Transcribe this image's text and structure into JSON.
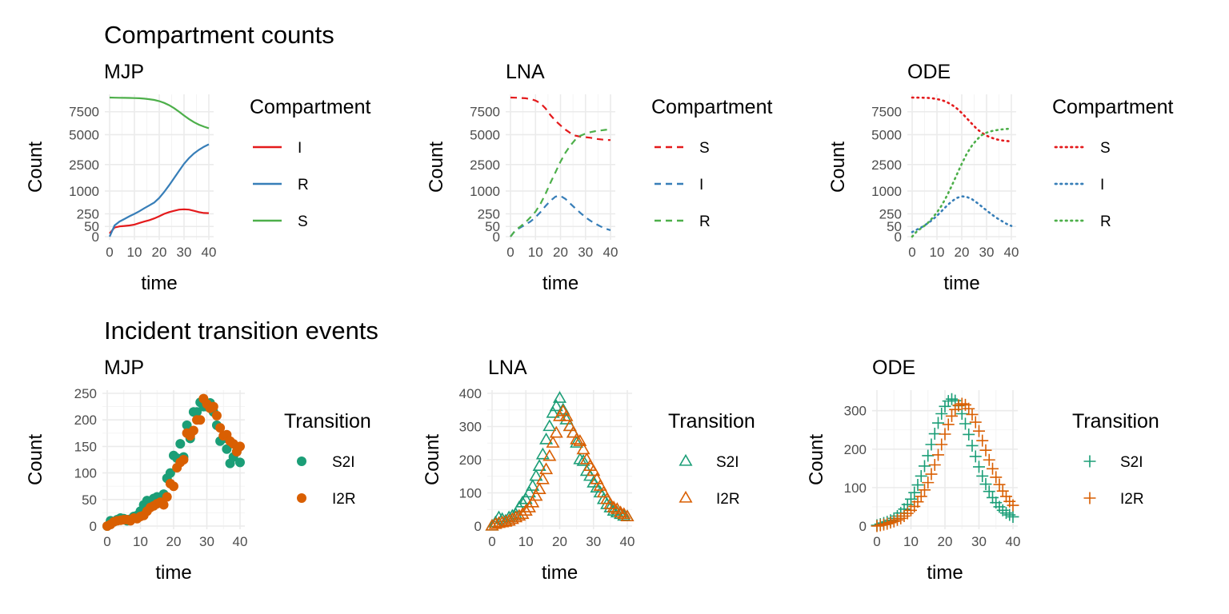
{
  "section_titles": {
    "top": "Compartment counts",
    "bottom": "Incident transition events"
  },
  "colors": {
    "red": "#E41A1C",
    "blue": "#377EB8",
    "green": "#4DAF4A",
    "teal": "#1B9E77",
    "orange": "#D95F02"
  },
  "chart_data": [
    {
      "type": "line",
      "title": "MJP",
      "xlabel": "time",
      "ylabel": "Count",
      "xlim": [
        0,
        40
      ],
      "y_scale": "sqrt",
      "ylim": [
        0,
        9300
      ],
      "x_ticks": [
        0,
        10,
        20,
        30,
        40
      ],
      "y_ticks": [
        0,
        50,
        250,
        1000,
        2500,
        5000,
        7500
      ],
      "linestyle": "solid",
      "legend_title": "Compartment",
      "legend_position": "right",
      "series": [
        {
          "name": "I",
          "color": "#E41A1C",
          "x": [
            0,
            2,
            4,
            6,
            8,
            10,
            12,
            14,
            16,
            18,
            20,
            22,
            24,
            26,
            28,
            30,
            32,
            34,
            36,
            38,
            40
          ],
          "y": [
            5,
            40,
            50,
            55,
            60,
            70,
            90,
            110,
            130,
            160,
            200,
            250,
            290,
            320,
            350,
            360,
            350,
            320,
            290,
            270,
            265
          ]
        },
        {
          "name": "R",
          "color": "#377EB8",
          "x": [
            0,
            2,
            4,
            6,
            8,
            10,
            12,
            14,
            16,
            18,
            20,
            22,
            24,
            26,
            28,
            30,
            32,
            34,
            36,
            38,
            40
          ],
          "y": [
            0,
            60,
            110,
            150,
            200,
            250,
            310,
            390,
            470,
            560,
            720,
            960,
            1270,
            1650,
            2080,
            2550,
            2960,
            3320,
            3620,
            3880,
            4100
          ]
        },
        {
          "name": "S",
          "color": "#4DAF4A",
          "x": [
            0,
            2,
            4,
            6,
            8,
            10,
            12,
            14,
            16,
            18,
            20,
            22,
            24,
            26,
            28,
            30,
            32,
            34,
            36,
            38,
            40
          ],
          "y": [
            9300,
            9280,
            9270,
            9260,
            9250,
            9230,
            9200,
            9150,
            9080,
            8980,
            8820,
            8600,
            8300,
            7930,
            7500,
            7050,
            6650,
            6300,
            6020,
            5820,
            5650
          ]
        }
      ]
    },
    {
      "type": "line",
      "title": "LNA",
      "xlabel": "time",
      "ylabel": "Count",
      "xlim": [
        0,
        40
      ],
      "y_scale": "sqrt",
      "ylim": [
        0,
        9300
      ],
      "x_ticks": [
        0,
        10,
        20,
        30,
        40
      ],
      "y_ticks": [
        0,
        50,
        250,
        1000,
        2500,
        5000,
        7500
      ],
      "linestyle": "dashed",
      "legend_title": "Compartment",
      "legend_position": "right",
      "series": [
        {
          "name": "S",
          "color": "#E41A1C",
          "x": [
            0,
            2,
            4,
            6,
            8,
            10,
            12,
            14,
            16,
            18,
            20,
            22,
            24,
            26,
            28,
            30,
            32,
            34,
            36,
            38,
            40
          ],
          "y": [
            9300,
            9280,
            9250,
            9200,
            9100,
            8900,
            8550,
            7900,
            7100,
            6450,
            5950,
            5500,
            5150,
            4900,
            4800,
            4750,
            4700,
            4600,
            4550,
            4500,
            4480
          ]
        },
        {
          "name": "I",
          "color": "#377EB8",
          "x": [
            0,
            2,
            4,
            6,
            8,
            10,
            12,
            14,
            16,
            18,
            20,
            22,
            24,
            26,
            28,
            30,
            32,
            34,
            36,
            38,
            40
          ],
          "y": [
            0,
            20,
            40,
            70,
            110,
            180,
            290,
            450,
            620,
            770,
            800,
            680,
            520,
            380,
            270,
            180,
            120,
            80,
            50,
            30,
            20
          ]
        },
        {
          "name": "R",
          "color": "#4DAF4A",
          "x": [
            0,
            2,
            4,
            6,
            8,
            10,
            12,
            14,
            16,
            18,
            20,
            22,
            24,
            26,
            28,
            30,
            32,
            34,
            36,
            38,
            40
          ],
          "y": [
            0,
            20,
            50,
            100,
            180,
            300,
            520,
            880,
            1400,
            2000,
            2700,
            3400,
            4000,
            4550,
            4900,
            5100,
            5250,
            5350,
            5420,
            5480,
            5550
          ]
        }
      ]
    },
    {
      "type": "line",
      "title": "ODE",
      "xlabel": "time",
      "ylabel": "Count",
      "xlim": [
        0,
        40
      ],
      "y_scale": "sqrt",
      "ylim": [
        0,
        9300
      ],
      "x_ticks": [
        0,
        10,
        20,
        30,
        40
      ],
      "y_ticks": [
        0,
        50,
        250,
        1000,
        2500,
        5000,
        7500
      ],
      "linestyle": "dotted",
      "legend_title": "Compartment",
      "legend_position": "right",
      "series": [
        {
          "name": "S",
          "color": "#E41A1C",
          "x": [
            0,
            2,
            4,
            6,
            8,
            10,
            12,
            14,
            16,
            18,
            20,
            22,
            24,
            26,
            28,
            30,
            32,
            34,
            36,
            38,
            40
          ],
          "y": [
            9300,
            9290,
            9280,
            9260,
            9200,
            9100,
            8950,
            8700,
            8350,
            7900,
            7350,
            6750,
            6150,
            5600,
            5200,
            4900,
            4700,
            4550,
            4450,
            4400,
            4350
          ]
        },
        {
          "name": "I",
          "color": "#377EB8",
          "x": [
            0,
            2,
            4,
            6,
            8,
            10,
            12,
            14,
            16,
            18,
            20,
            22,
            24,
            26,
            28,
            30,
            32,
            34,
            36,
            38,
            40
          ],
          "y": [
            10,
            25,
            45,
            80,
            130,
            210,
            320,
            460,
            600,
            720,
            780,
            760,
            680,
            560,
            440,
            330,
            240,
            170,
            120,
            80,
            55
          ]
        },
        {
          "name": "R",
          "color": "#4DAF4A",
          "x": [
            0,
            2,
            4,
            6,
            8,
            10,
            12,
            14,
            16,
            18,
            20,
            22,
            24,
            26,
            28,
            30,
            32,
            34,
            36,
            38,
            40
          ],
          "y": [
            0,
            15,
            40,
            80,
            160,
            280,
            480,
            800,
            1250,
            1850,
            2550,
            3300,
            3950,
            4500,
            4950,
            5200,
            5350,
            5450,
            5520,
            5570,
            5600
          ]
        }
      ]
    },
    {
      "type": "scatter",
      "title": "MJP",
      "xlabel": "time",
      "ylabel": "Count",
      "xlim": [
        0,
        40
      ],
      "ylim": [
        0,
        250
      ],
      "x_ticks": [
        0,
        10,
        20,
        30,
        40
      ],
      "y_ticks": [
        0,
        50,
        100,
        150,
        200,
        250
      ],
      "marker": "circle",
      "legend_title": "Transition",
      "legend_position": "right",
      "series": [
        {
          "name": "S2I",
          "color": "#1B9E77",
          "x": [
            0,
            1,
            2,
            3,
            4,
            5,
            6,
            7,
            8,
            9,
            10,
            11,
            12,
            13,
            14,
            15,
            16,
            17,
            18,
            19,
            20,
            21,
            22,
            23,
            24,
            25,
            26,
            27,
            28,
            29,
            30,
            31,
            32,
            33,
            34,
            35,
            36,
            37,
            38,
            39,
            40
          ],
          "y": [
            0,
            10,
            8,
            12,
            15,
            14,
            10,
            13,
            18,
            20,
            28,
            40,
            48,
            45,
            52,
            55,
            50,
            60,
            90,
            100,
            133,
            128,
            155,
            130,
            190,
            165,
            215,
            215,
            233,
            225,
            225,
            232,
            215,
            190,
            160,
            165,
            145,
            118,
            130,
            140,
            120
          ]
        },
        {
          "name": "I2R",
          "color": "#D95F02",
          "x": [
            0,
            1,
            2,
            3,
            4,
            5,
            6,
            7,
            8,
            9,
            10,
            11,
            12,
            13,
            14,
            15,
            16,
            17,
            18,
            19,
            20,
            21,
            22,
            23,
            24,
            25,
            26,
            27,
            28,
            29,
            30,
            31,
            32,
            33,
            34,
            35,
            36,
            37,
            38,
            39,
            40
          ],
          "y": [
            0,
            3,
            8,
            10,
            11,
            12,
            12,
            10,
            15,
            14,
            18,
            20,
            28,
            35,
            38,
            42,
            45,
            40,
            55,
            80,
            75,
            110,
            120,
            125,
            175,
            170,
            180,
            200,
            200,
            240,
            230,
            222,
            225,
            208,
            185,
            170,
            172,
            160,
            155,
            140,
            150
          ]
        }
      ]
    },
    {
      "type": "scatter",
      "title": "LNA",
      "xlabel": "time",
      "ylabel": "Count",
      "xlim": [
        0,
        40
      ],
      "ylim": [
        0,
        400
      ],
      "x_ticks": [
        0,
        10,
        20,
        30,
        40
      ],
      "y_ticks": [
        0,
        100,
        200,
        300,
        400
      ],
      "marker": "triangle",
      "legend_title": "Transition",
      "legend_position": "right",
      "series": [
        {
          "name": "S2I",
          "color": "#1B9E77",
          "x": [
            0,
            1,
            2,
            3,
            4,
            5,
            6,
            7,
            8,
            9,
            10,
            11,
            12,
            13,
            14,
            15,
            16,
            17,
            18,
            19,
            20,
            21,
            22,
            23,
            24,
            25,
            26,
            27,
            28,
            29,
            30,
            31,
            32,
            33,
            34,
            35,
            36,
            37,
            38,
            39,
            40
          ],
          "y": [
            0,
            10,
            25,
            20,
            15,
            25,
            30,
            35,
            55,
            70,
            80,
            100,
            120,
            150,
            180,
            215,
            260,
            300,
            340,
            360,
            385,
            350,
            320,
            300,
            280,
            250,
            200,
            195,
            165,
            150,
            130,
            115,
            100,
            80,
            65,
            55,
            45,
            40,
            35,
            30,
            28
          ]
        },
        {
          "name": "I2R",
          "color": "#D95F02",
          "x": [
            0,
            1,
            2,
            3,
            4,
            5,
            6,
            7,
            8,
            9,
            10,
            11,
            12,
            13,
            14,
            15,
            16,
            17,
            18,
            19,
            20,
            21,
            22,
            23,
            24,
            25,
            26,
            27,
            28,
            29,
            30,
            31,
            32,
            33,
            34,
            35,
            36,
            37,
            38,
            39,
            40
          ],
          "y": [
            0,
            5,
            8,
            10,
            12,
            15,
            20,
            25,
            30,
            35,
            45,
            55,
            70,
            90,
            110,
            140,
            170,
            210,
            250,
            280,
            330,
            345,
            330,
            300,
            280,
            260,
            255,
            230,
            200,
            180,
            165,
            140,
            120,
            100,
            80,
            65,
            55,
            50,
            40,
            35,
            28
          ]
        }
      ]
    },
    {
      "type": "scatter",
      "title": "ODE",
      "xlabel": "time",
      "ylabel": "Count",
      "xlim": [
        0,
        40
      ],
      "ylim": [
        0,
        345
      ],
      "x_ticks": [
        0,
        10,
        20,
        30,
        40
      ],
      "y_ticks": [
        0,
        100,
        200,
        300
      ],
      "marker": "plus",
      "legend_title": "Transition",
      "legend_position": "right",
      "series": [
        {
          "name": "S2I",
          "color": "#1B9E77",
          "x": [
            0,
            1,
            2,
            3,
            4,
            5,
            6,
            7,
            8,
            9,
            10,
            11,
            12,
            13,
            14,
            15,
            16,
            17,
            18,
            19,
            20,
            21,
            22,
            23,
            24,
            25,
            26,
            27,
            28,
            29,
            30,
            31,
            32,
            33,
            34,
            35,
            36,
            37,
            38,
            39,
            40
          ],
          "y": [
            2,
            5,
            8,
            11,
            15,
            20,
            26,
            34,
            44,
            56,
            70,
            87,
            107,
            130,
            156,
            183,
            212,
            240,
            268,
            292,
            311,
            325,
            330,
            326,
            313,
            292,
            266,
            238,
            209,
            181,
            154,
            130,
            109,
            90,
            74,
            61,
            50,
            41,
            34,
            29,
            24
          ]
        },
        {
          "name": "I2R",
          "color": "#D95F02",
          "x": [
            0,
            1,
            2,
            3,
            4,
            5,
            6,
            7,
            8,
            9,
            10,
            11,
            12,
            13,
            14,
            15,
            16,
            17,
            18,
            19,
            20,
            21,
            22,
            23,
            24,
            25,
            26,
            27,
            28,
            29,
            30,
            31,
            32,
            33,
            34,
            35,
            36,
            37,
            38,
            39,
            40
          ],
          "y": [
            0,
            2,
            4,
            6,
            9,
            12,
            16,
            20,
            26,
            33,
            41,
            51,
            63,
            77,
            94,
            113,
            135,
            159,
            185,
            212,
            239,
            264,
            286,
            303,
            314,
            318,
            315,
            305,
            290,
            270,
            247,
            222,
            197,
            172,
            149,
            127,
            108,
            91,
            77,
            64,
            54
          ]
        }
      ]
    }
  ]
}
